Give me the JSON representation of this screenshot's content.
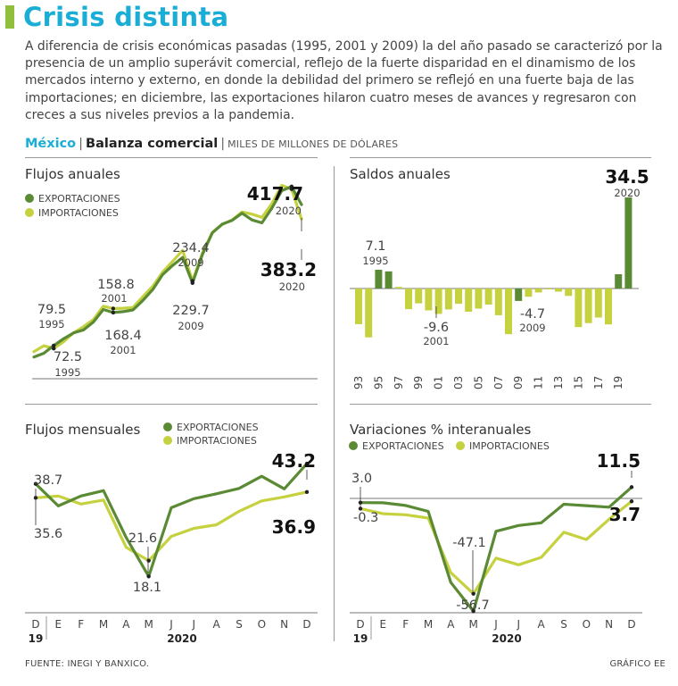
{
  "title": "Crisis distinta",
  "intro": "A diferencia de crisis económicas pasadas (1995, 2001 y 2009) la del año pasado se caracterizó por la presencia de un amplio superávit comercial, reflejo de la fuerte disparidad en el dinamismo de los mercados interno y externo, en donde la debilidad del primero se reflejó en una fuerte baja de las importaciones; en diciembre, las exportaciones hilaron cuatro meses de avances y regresaron con creces a sus niveles previos a la pandemia.",
  "subtitle": {
    "country": "México",
    "sep": "|",
    "name": "Balanza comercial",
    "units": "MILES DE MILLONES DE DÓLARES"
  },
  "colors": {
    "exports": "#5b8a34",
    "imports": "#c5d13f",
    "accent": "#1aaed6",
    "brand": "#8fbf3c"
  },
  "footer": {
    "source": "FUENTE: INEGI Y BANXICO.",
    "credit": "GRÁFICO EE"
  },
  "chart_data": [
    {
      "id": "annual-flows",
      "type": "line",
      "title": "Flujos anuales",
      "legend": [
        "EXPORTACIONES",
        "IMPORTACIONES"
      ],
      "x": [
        1993,
        1994,
        1995,
        1996,
        1997,
        1998,
        1999,
        2000,
        2001,
        2002,
        2003,
        2004,
        2005,
        2006,
        2007,
        2008,
        2009,
        2010,
        2011,
        2012,
        2013,
        2014,
        2015,
        2016,
        2017,
        2018,
        2019,
        2020
      ],
      "series": [
        {
          "name": "EXPORTACIONES",
          "values": [
            52,
            61,
            79.5,
            96,
            110,
            117,
            136,
            166,
            158.8,
            161,
            165,
            188,
            214,
            250,
            272,
            291,
            229.7,
            298,
            350,
            371,
            380,
            397,
            381,
            374,
            409,
            451,
            461,
            417.7
          ]
        },
        {
          "name": "IMPORTACIONES",
          "values": [
            65,
            79,
            72.5,
            89,
            110,
            125,
            142,
            174,
            168.4,
            169,
            171,
            197,
            222,
            256,
            282,
            308,
            234.4,
            301,
            351,
            370,
            381,
            400,
            395,
            387,
            420,
            464,
            455,
            383.2
          ]
        }
      ],
      "ylim": [
        0,
        480
      ],
      "annotations": [
        {
          "value": "417.7",
          "year": "2020"
        },
        {
          "value": "383.2",
          "year": "2020"
        },
        {
          "value": "234.4",
          "year": "2009"
        },
        {
          "value": "229.7",
          "year": "2009"
        },
        {
          "value": "158.8",
          "year": "2001"
        },
        {
          "value": "168.4",
          "year": "2001"
        },
        {
          "value": "79.5",
          "year": "1995"
        },
        {
          "value": "72.5",
          "year": "1995"
        }
      ]
    },
    {
      "id": "annual-balance",
      "type": "bar",
      "title": "Saldos anuales",
      "x": [
        1993,
        1994,
        1995,
        1996,
        1997,
        1998,
        1999,
        2000,
        2001,
        2002,
        2003,
        2004,
        2005,
        2006,
        2007,
        2008,
        2009,
        2010,
        2011,
        2012,
        2013,
        2014,
        2015,
        2016,
        2017,
        2018,
        2019,
        2020
      ],
      "values": [
        -13.5,
        -18.5,
        7.1,
        6.5,
        0.6,
        -7.8,
        -5.6,
        -8.3,
        -9.6,
        -7.9,
        -5.8,
        -8.8,
        -7.6,
        -6.1,
        -10.1,
        -17.3,
        -4.7,
        -3.1,
        -1.5,
        0.0,
        -1.2,
        -2.8,
        -14.6,
        -13.1,
        -11.0,
        -13.6,
        5.4,
        34.5
      ],
      "highlight_years": [
        1995,
        1996,
        2009,
        2020
      ],
      "xtick_labels": [
        "93",
        "95",
        "97",
        "99",
        "01",
        "03",
        "05",
        "07",
        "09",
        "11",
        "13",
        "15",
        "17",
        "19"
      ],
      "ylim": [
        -22,
        38
      ],
      "annotations": [
        {
          "value": "34.5",
          "year": "2020"
        },
        {
          "value": "7.1",
          "year": "1995"
        },
        {
          "value": "-9.6",
          "year": "2001"
        },
        {
          "value": "-4.7",
          "year": "2009"
        }
      ]
    },
    {
      "id": "monthly-flows",
      "type": "line",
      "title": "Flujos mensuales",
      "legend": [
        "EXPORTACIONES",
        "IMPORTACIONES"
      ],
      "x": [
        "D",
        "E",
        "F",
        "M",
        "A",
        "M",
        "J",
        "J",
        "A",
        "S",
        "O",
        "N",
        "D"
      ],
      "year_labels": [
        "19",
        "2020"
      ],
      "series": [
        {
          "name": "EXPORTACIONES",
          "values": [
            38.7,
            33.8,
            36.0,
            37.2,
            26.8,
            18.1,
            33.4,
            35.4,
            36.5,
            37.7,
            40.4,
            37.6,
            43.2
          ]
        },
        {
          "name": "IMPORTACIONES",
          "values": [
            35.6,
            36.0,
            34.2,
            35.1,
            24.6,
            21.6,
            27.0,
            28.8,
            29.6,
            32.6,
            34.9,
            35.8,
            36.9
          ]
        }
      ],
      "ylim": [
        10,
        47
      ],
      "annotations": [
        {
          "value": "43.2"
        },
        {
          "value": "36.9"
        },
        {
          "value": "38.7"
        },
        {
          "value": "35.6"
        },
        {
          "value": "21.6"
        },
        {
          "value": "18.1"
        }
      ]
    },
    {
      "id": "yoy-variation",
      "type": "line",
      "title": "Variaciones % interanuales",
      "legend": [
        "EXPORTACIONES",
        "IMPORTACIONES"
      ],
      "x": [
        "D",
        "E",
        "F",
        "M",
        "A",
        "M",
        "J",
        "J",
        "A",
        "S",
        "O",
        "N",
        "D"
      ],
      "year_labels": [
        "19",
        "2020"
      ],
      "series": [
        {
          "name": "EXPORTACIONES",
          "values": [
            3.0,
            2.9,
            1.4,
            -1.8,
            -40.9,
            -56.7,
            -12.8,
            -9.6,
            -8.1,
            2.1,
            1.3,
            0.5,
            11.5
          ]
        },
        {
          "name": "IMPORTACIONES",
          "values": [
            -0.3,
            -3.1,
            -3.7,
            -5.5,
            -35.5,
            -47.1,
            -27.5,
            -31.2,
            -27.1,
            -13.3,
            -17.3,
            -6.2,
            3.7
          ]
        }
      ],
      "ylim": [
        -62,
        22
      ],
      "annotations": [
        {
          "value": "11.5"
        },
        {
          "value": "3.7"
        },
        {
          "value": "3.0"
        },
        {
          "value": "-0.3"
        },
        {
          "value": "-47.1"
        },
        {
          "value": "-56.7"
        }
      ]
    }
  ]
}
